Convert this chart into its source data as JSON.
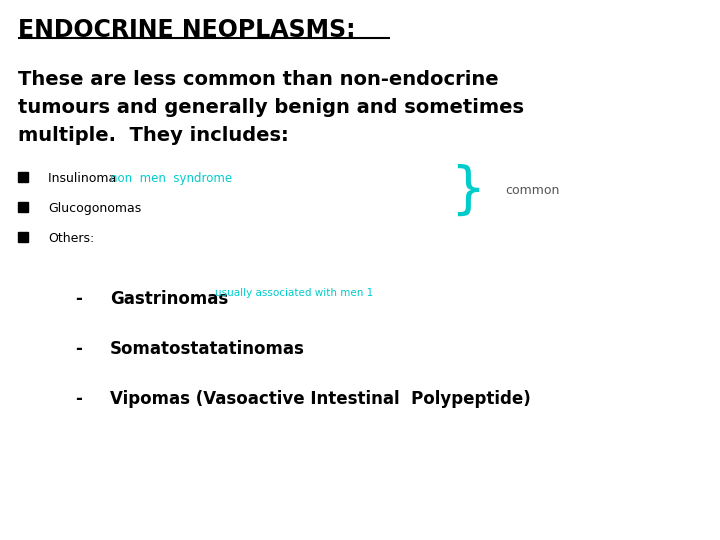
{
  "title": "ENDOCRINE NEOPLASMS:",
  "bg_color": "#ffffff",
  "title_color": "#000000",
  "title_fontsize": 17,
  "body_fontsize": 14,
  "small_fontsize": 9,
  "sub_fontsize": 12,
  "green_small_fontsize": 7.5,
  "body_text_line1": "These are less common than non-endocrine",
  "body_text_line2": "tumours and generally benign and sometimes",
  "body_text_line3": "multiple.  They includes:",
  "bullet_color": "#000000",
  "bullet1_prefix": "Insulinoma ",
  "bullet1_green": "non  men  syndrome",
  "bullet2": "Glucogonomas",
  "bullet3": "Others:",
  "sub1_text": "Gastrinomas",
  "sub1_green": "usually associated with men 1",
  "sub2_text": "Somatostatatinomas",
  "sub3_text": "Vipomas (Vasoactive Intestinal  Polypeptide)",
  "brace_color": "#00cccc",
  "common_text": "common",
  "common_color": "#555555",
  "green_color": "#00cccc"
}
